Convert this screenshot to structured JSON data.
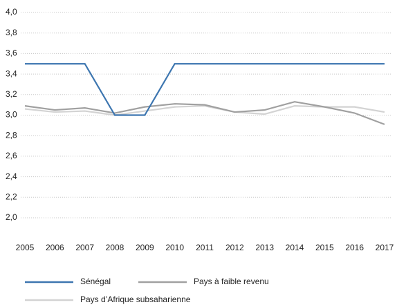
{
  "chart_data": {
    "type": "line",
    "categories": [
      "2005",
      "2006",
      "2007",
      "2008",
      "2009",
      "2010",
      "2011",
      "2012",
      "2013",
      "2014",
      "2015",
      "2016",
      "2017"
    ],
    "series": [
      {
        "name": "Sénégal",
        "color": "#3d76b0",
        "values": [
          3.5,
          3.5,
          3.5,
          3.0,
          3.0,
          3.5,
          3.5,
          3.5,
          3.5,
          3.5,
          3.5,
          3.5,
          3.5
        ]
      },
      {
        "name": "Pays à faible revenu",
        "color": "#a0a0a0",
        "values": [
          3.09,
          3.05,
          3.07,
          3.02,
          3.08,
          3.11,
          3.1,
          3.03,
          3.05,
          3.13,
          3.08,
          3.02,
          2.91
        ]
      },
      {
        "name": "Pays d’Afrique subsaharienne",
        "color": "#d3d3d3",
        "values": [
          3.06,
          3.03,
          3.04,
          3.0,
          3.04,
          3.08,
          3.09,
          3.03,
          3.01,
          3.09,
          3.08,
          3.08,
          3.03
        ]
      }
    ],
    "ylim": [
      1.8,
      4.0
    ],
    "yticks": [
      {
        "value": 2.0,
        "label": "2,0"
      },
      {
        "value": 2.2,
        "label": "2,2"
      },
      {
        "value": 2.4,
        "label": "2,4"
      },
      {
        "value": 2.6,
        "label": "2,6"
      },
      {
        "value": 2.8,
        "label": "2,8"
      },
      {
        "value": 3.0,
        "label": "3,0"
      },
      {
        "value": 3.2,
        "label": "3,2"
      },
      {
        "value": 3.4,
        "label": "3,4"
      },
      {
        "value": 3.6,
        "label": "3,6"
      },
      {
        "value": 3.8,
        "label": "3,8"
      },
      {
        "value": 4.0,
        "label": "4,0"
      }
    ],
    "grid": true
  }
}
